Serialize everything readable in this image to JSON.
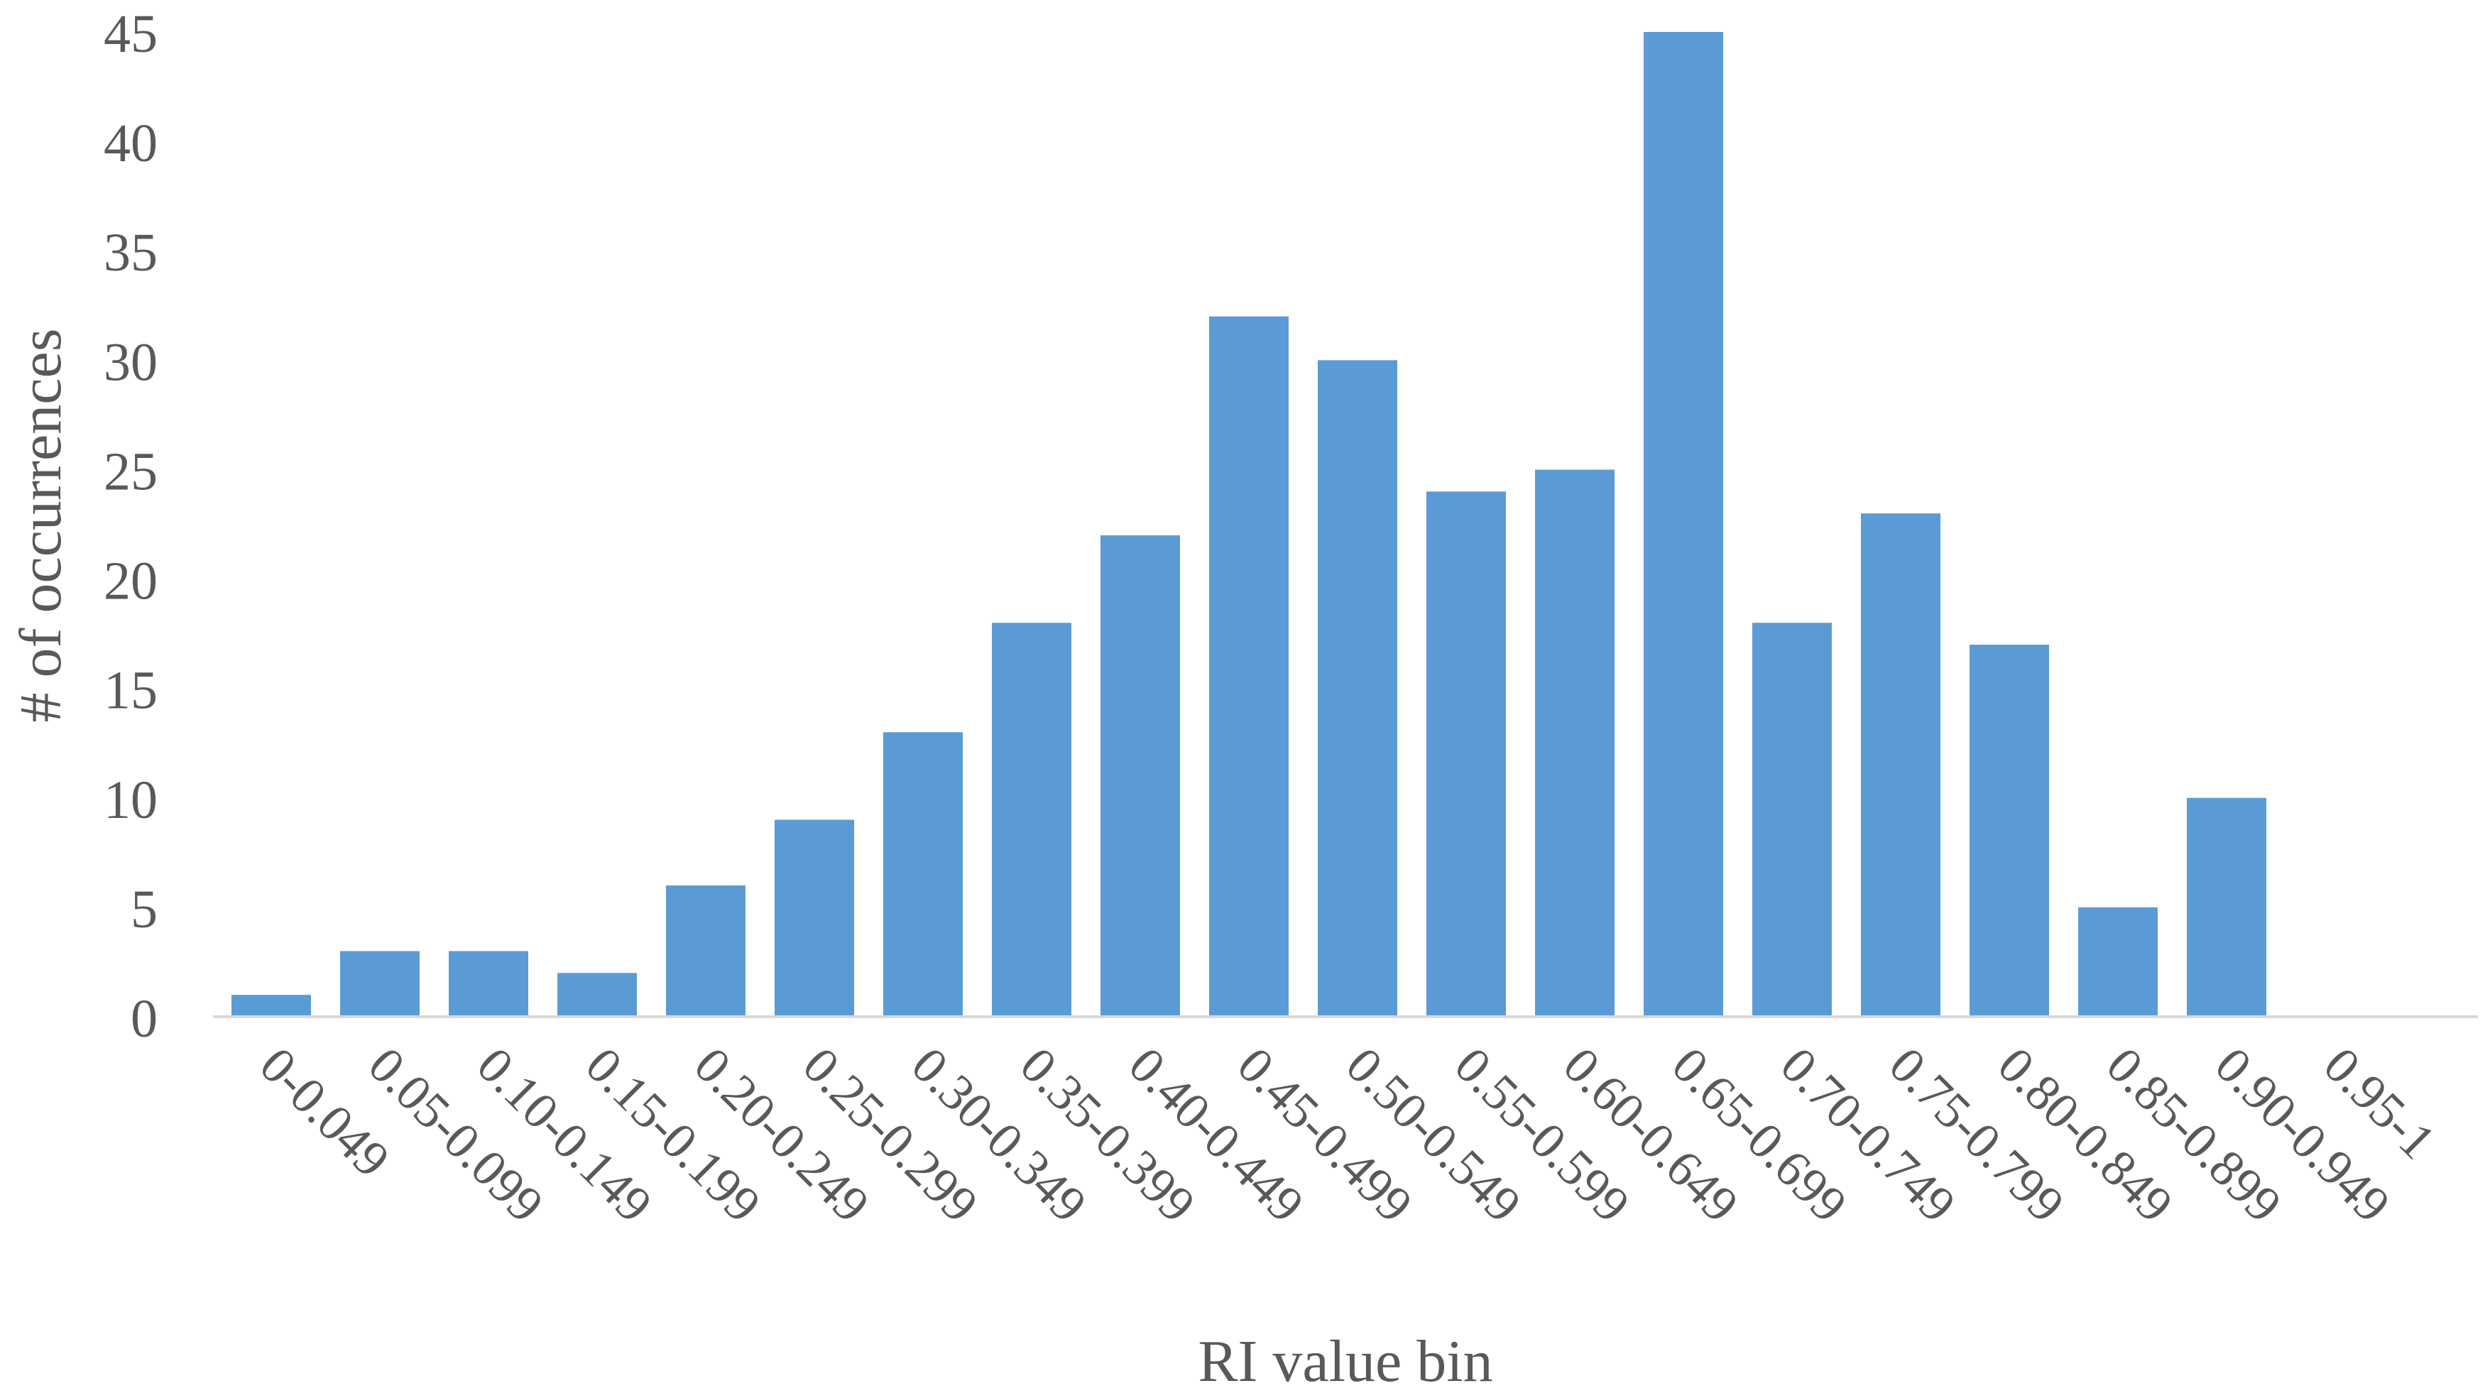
{
  "chart_data": {
    "type": "bar",
    "title": "",
    "xlabel": "RI value bin",
    "ylabel": "# of occurrences",
    "ylim": [
      0,
      45
    ],
    "yticks": [
      0,
      5,
      10,
      15,
      20,
      25,
      30,
      35,
      40,
      45
    ],
    "grid": false,
    "legend": "none",
    "bar_color": "#5b9bd5",
    "axis_color": "#d9d9d9",
    "text_color": "#595959",
    "categories": [
      "0-0.049",
      "0.05-0.099",
      "0.10-0.149",
      "0.15-0.199",
      "0.20-0.249",
      "0.25-0.299",
      "0.30-0.349",
      "0.35-0.399",
      "0.40-0.449",
      "0.45-0.499",
      "0.50-0.549",
      "0.55-0.599",
      "0.60-0.649",
      "0.65-0.699",
      "0.70-0.749",
      "0.75-0.799",
      "0.80-0.849",
      "0.85-0.899",
      "0.90-0.949",
      "0.95-1"
    ],
    "values": [
      1,
      3,
      3,
      2,
      6,
      9,
      13,
      18,
      22,
      32,
      30,
      24,
      25,
      45,
      18,
      23,
      17,
      5,
      10,
      0
    ]
  }
}
